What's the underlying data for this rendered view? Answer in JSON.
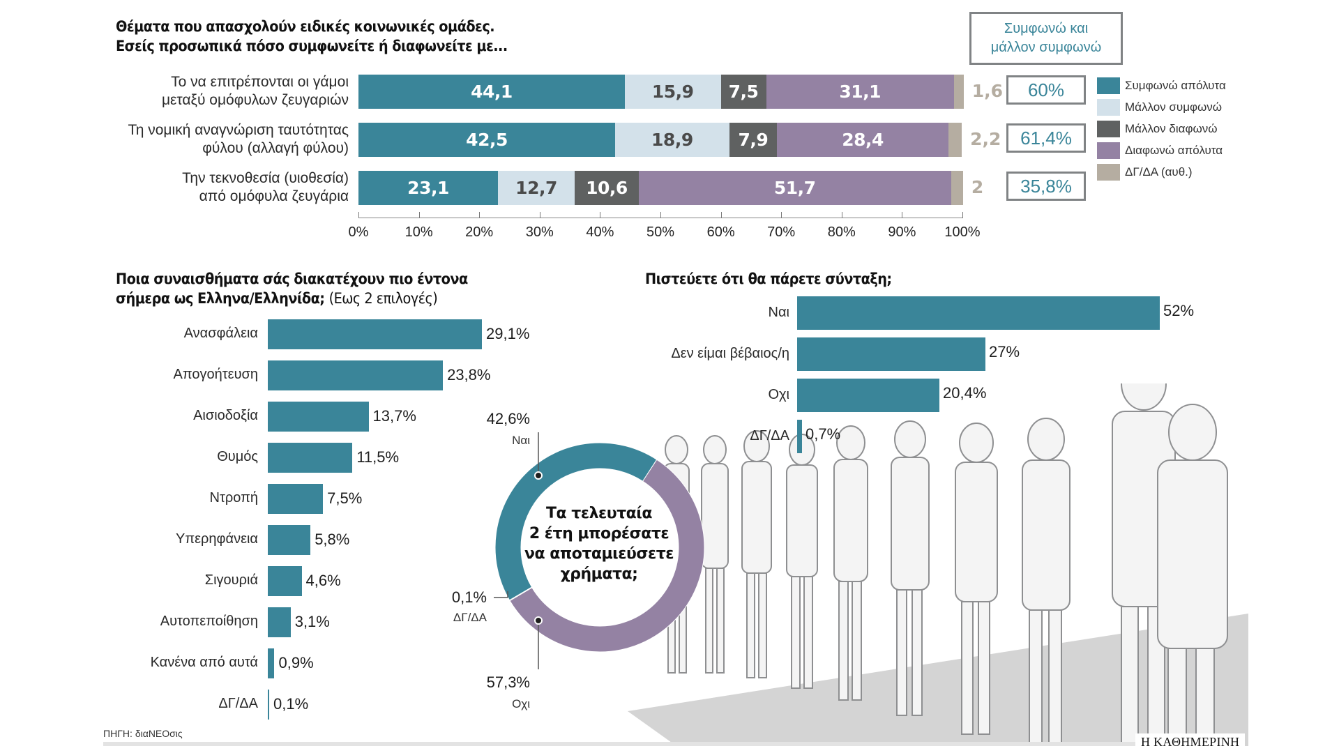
{
  "colors": {
    "agree_fully": "#3a8599",
    "rather_agree": "#d3e1ea",
    "rather_disagree": "#5f6161",
    "disagree_fully": "#9482a3",
    "dk_na": "#b5ada1",
    "box_border": "#808385",
    "box_text": "#3a8599"
  },
  "chart_data": [
    {
      "type": "bar",
      "orientation": "horizontal",
      "stacked": true,
      "title": "Θέματα που απασχολούν ειδικές κοινωνικές ομάδες. Εσείς προσωπικά πόσο συμφωνείτε ή διαφωνείτε με...",
      "title_lines": [
        "Θέματα που απασχολούν ειδικές κοινωνικές ομάδες.",
        "Εσείς προσωπικά πόσο συμφωνείτε ή διαφωνείτε με..."
      ],
      "categories": [
        "Το να επιτρέπονται οι γάμοι μεταξύ ομόφυλων ζευγαριών",
        "Τη νομική αναγνώριση ταυτότητας φύλου (αλλαγή φύλου)",
        "Την τεκνοθεσία (υιοθεσία) από ομόφυλα ζευγάρια"
      ],
      "category_lines": [
        [
          "Το να επιτρέπονται οι γάμοι",
          "μεταξύ ομόφυλων ζευγαριών"
        ],
        [
          "Τη νομική αναγνώριση ταυτότητας",
          "φύλου (αλλαγή φύλου)"
        ],
        [
          "Την τεκνοθεσία (υιοθεσία)",
          "από ομόφυλα ζευγάρια"
        ]
      ],
      "series": [
        {
          "name": "Συμφωνώ απόλυτα",
          "color_key": "agree_fully",
          "values": [
            44.1,
            42.5,
            23.1
          ],
          "labels": [
            "44,1",
            "42,5",
            "23,1"
          ]
        },
        {
          "name": "Μάλλον συμφωνώ",
          "color_key": "rather_agree",
          "values": [
            15.9,
            18.9,
            12.7
          ],
          "labels": [
            "15,9",
            "18,9",
            "12,7"
          ]
        },
        {
          "name": "Μάλλον διαφωνώ",
          "color_key": "rather_disagree",
          "values": [
            7.5,
            7.9,
            10.6
          ],
          "labels": [
            "7,5",
            "7,9",
            "10,6"
          ]
        },
        {
          "name": "Διαφωνώ απόλυτα",
          "color_key": "disagree_fully",
          "values": [
            31.1,
            28.4,
            51.7
          ],
          "labels": [
            "31,1",
            "28,4",
            "51,7"
          ]
        },
        {
          "name": "ΔΓ/ΔΑ (αυθ.)",
          "color_key": "dk_na",
          "values": [
            1.6,
            2.2,
            2.0
          ],
          "labels": [
            "1,6",
            "2,2",
            "2"
          ]
        }
      ],
      "xlim": [
        0,
        100
      ],
      "xticks": [
        "0%",
        "10%",
        "20%",
        "30%",
        "40%",
        "50%",
        "60%",
        "70%",
        "80%",
        "90%",
        "100%"
      ],
      "summary_header": [
        "Συμφωνώ και",
        "μάλλον συμφωνώ"
      ],
      "summary_values": [
        "60%",
        "61,4%",
        "35,8%"
      ],
      "legend": [
        "Συμφωνώ απόλυτα",
        "Μάλλον συμφωνώ",
        "Μάλλον διαφωνώ",
        "Διαφωνώ απόλυτα",
        "ΔΓ/ΔΑ (αυθ.)"
      ],
      "legend_position": "right"
    },
    {
      "type": "bar",
      "orientation": "horizontal",
      "title_bold_lines": [
        "Ποια συναισθήματα σάς διακατέχουν πιο έντονα",
        "σήμερα ως Ελληνα/Ελληνίδα;"
      ],
      "title_note": "(Εως 2 επιλογές)",
      "categories": [
        "Ανασφάλεια",
        "Απογοήτευση",
        "Αισιοδοξία",
        "Θυμός",
        "Ντροπή",
        "Υπερηφάνεια",
        "Σιγουριά",
        "Αυτοπεποίθηση",
        "Κανένα από αυτά",
        "ΔΓ/ΔΑ"
      ],
      "values": [
        29.1,
        23.8,
        13.7,
        11.5,
        7.5,
        5.8,
        4.6,
        3.1,
        0.9,
        0.1
      ],
      "labels": [
        "29,1%",
        "23,8%",
        "13,7%",
        "11,5%",
        "7,5%",
        "5,8%",
        "4,6%",
        "3,1%",
        "0,9%",
        "0,1%"
      ],
      "color_key": "agree_fully"
    },
    {
      "type": "pie",
      "donut": true,
      "title_lines": [
        "Τα τελευταία",
        "2 έτη μπορέσατε",
        "να αποταμιεύσετε",
        "χρήματα;"
      ],
      "slices": [
        {
          "name": "Ναι",
          "value": 42.6,
          "label": "42,6%",
          "color_key": "agree_fully"
        },
        {
          "name": "Οχι",
          "value": 57.3,
          "label": "57,3%",
          "color_key": "disagree_fully"
        },
        {
          "name": "ΔΓ/ΔΑ",
          "value": 0.1,
          "label": "0,1%",
          "color_key": "dk_na"
        }
      ]
    },
    {
      "type": "bar",
      "orientation": "horizontal",
      "title": "Πιστεύετε ότι θα πάρετε σύνταξη;",
      "categories": [
        "Ναι",
        "Δεν είμαι βέβαιος/η",
        "Οχι",
        "ΔΓ/ΔΑ"
      ],
      "values": [
        52,
        27,
        20.4,
        0.7
      ],
      "labels": [
        "52%",
        "27%",
        "20,4%",
        "0,7%"
      ],
      "color_key": "agree_fully"
    }
  ],
  "footer": {
    "source": "ΠΗΓΗ: διαΝΕΟσις",
    "brand": "Η ΚΑΘΗΜΕΡΙΝΗ"
  },
  "illustration": {
    "icon": "crowd-queue-illustration"
  }
}
